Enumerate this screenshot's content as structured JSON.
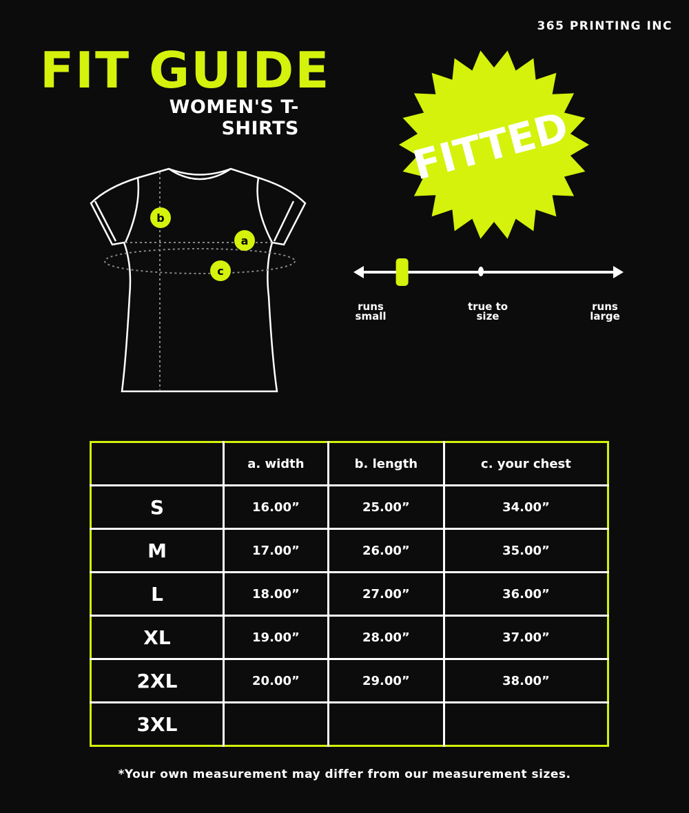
{
  "brand": "365 PRINTING INC",
  "title": "FIT GUIDE",
  "subtitle": "WOMEN'S T-SHIRTS",
  "badge": {
    "label": "FITTED",
    "color": "#d4f20c"
  },
  "accent_color": "#d4f20c",
  "diagram": {
    "markers": [
      "a",
      "b",
      "c"
    ]
  },
  "fit_scale": {
    "labels": [
      {
        "line1": "runs",
        "line2": "small"
      },
      {
        "line1": "true to",
        "line2": "size"
      },
      {
        "line1": "runs",
        "line2": "large"
      }
    ],
    "level": 0.18
  },
  "table": {
    "headers": [
      "",
      "a. width",
      "b. length",
      "c. your chest"
    ],
    "rows": [
      [
        "S",
        "16.00”",
        "25.00”",
        "34.00”"
      ],
      [
        "M",
        "17.00”",
        "26.00”",
        "35.00”"
      ],
      [
        "L",
        "18.00”",
        "27.00”",
        "36.00”"
      ],
      [
        "XL",
        "19.00”",
        "28.00”",
        "37.00”"
      ],
      [
        "2XL",
        "20.00”",
        "29.00”",
        "38.00”"
      ],
      [
        "3XL",
        "",
        "",
        ""
      ]
    ]
  },
  "footnote": "*Your own measurement may differ from our measurement sizes."
}
